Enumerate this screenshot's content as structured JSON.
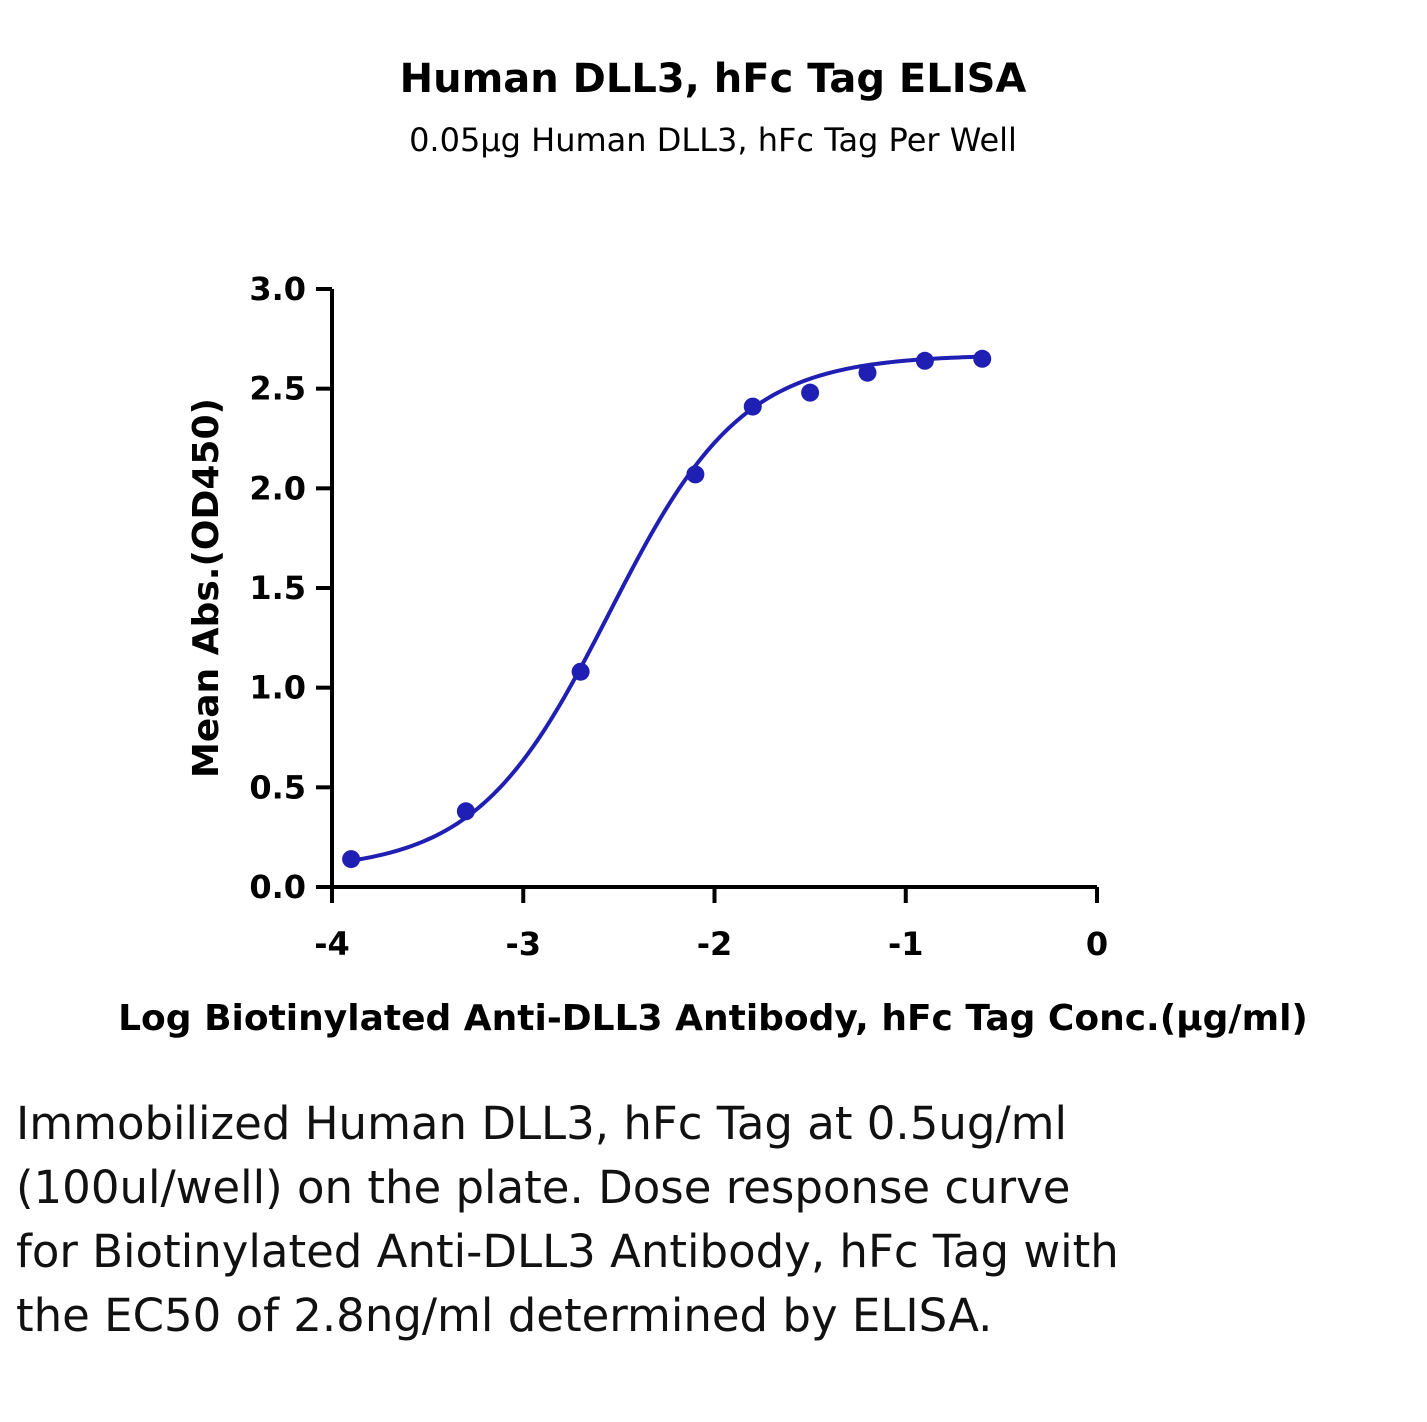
{
  "chart_data": {
    "type": "scatter",
    "title": "Human DLL3, hFc Tag ELISA",
    "subtitle": "0.05µg Human DLL3, hFc Tag Per Well",
    "xlabel": "Log Biotinylated Anti-DLL3 Antibody, hFc Tag Conc.(µg/ml)",
    "ylabel": "Mean Abs.(OD450)",
    "xlim": [
      -4,
      0
    ],
    "ylim": [
      0,
      3.0
    ],
    "xticks": [
      -4,
      -3,
      -2,
      -1,
      0
    ],
    "xtick_labels": [
      "-4",
      "-3",
      "-2",
      "-1",
      "0"
    ],
    "yticks": [
      0,
      0.5,
      1.0,
      1.5,
      2.0,
      2.5,
      3.0
    ],
    "ytick_labels": [
      "0.0",
      "0.5",
      "1.0",
      "1.5",
      "2.0",
      "2.5",
      "3.0"
    ],
    "grid": false,
    "color": "#1f1fb4",
    "points": [
      {
        "x": -3.9,
        "y": 0.14
      },
      {
        "x": -3.3,
        "y": 0.38
      },
      {
        "x": -2.7,
        "y": 1.08
      },
      {
        "x": -2.1,
        "y": 2.07
      },
      {
        "x": -1.8,
        "y": 2.41
      },
      {
        "x": -1.5,
        "y": 2.48
      },
      {
        "x": -1.2,
        "y": 2.58
      },
      {
        "x": -0.9,
        "y": 2.64
      },
      {
        "x": -0.6,
        "y": 2.65
      }
    ],
    "fit": {
      "model": "4PL",
      "bottom": 0.08,
      "top": 2.67,
      "logEC50": -2.55,
      "hill": 1.25,
      "x_range": [
        -3.9,
        -0.6
      ]
    }
  },
  "caption": "Immobilized Human DLL3, hFc Tag at 0.5ug/ml (100ul/well) on the plate. Dose response curve for Biotinylated Anti-DLL3 Antibody, hFc Tag with the EC50 of 2.8ng/ml determined by ELISA."
}
